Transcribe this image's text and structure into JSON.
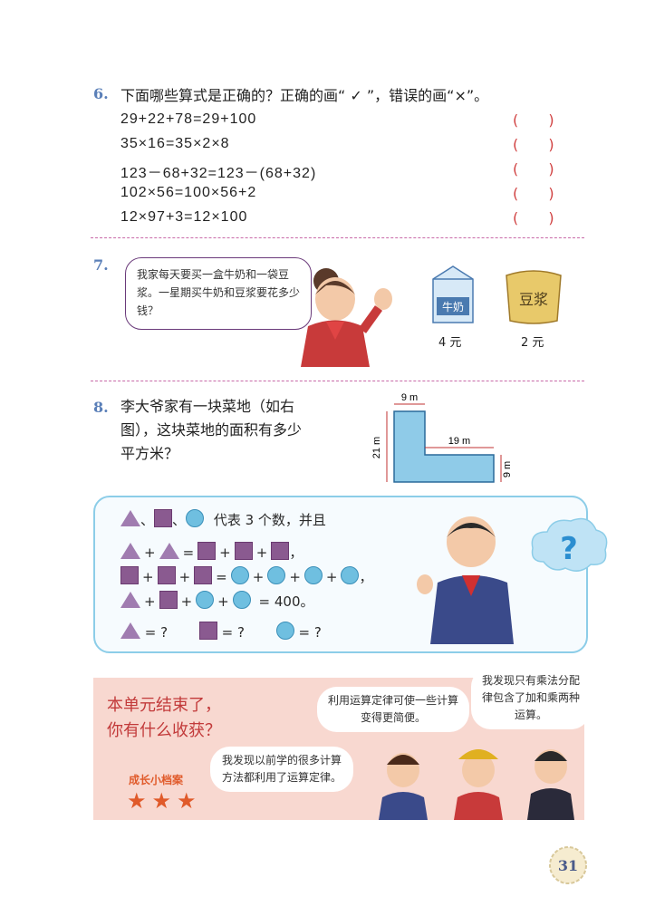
{
  "q6": {
    "number": "6.",
    "prompt": "下面哪些算式是正确的？正确的画“ ✓ ”，错误的画“×”。",
    "rows": [
      {
        "expr": "29+22+78=29+100",
        "paren": "(  )"
      },
      {
        "expr": "35×16=35×2×8",
        "paren": "(  )"
      },
      {
        "expr": "123－68+32=123－(68+32)",
        "paren": "(  )"
      },
      {
        "expr": "102×56=100×56+2",
        "paren": "(  )"
      },
      {
        "expr": "12×97+3=12×100",
        "paren": "(  )"
      }
    ]
  },
  "q7": {
    "number": "7.",
    "bubble": "我家每天要买一盒牛奶和一袋豆浆。一星期买牛奶和豆浆要花多少钱？",
    "milk_label": "牛奶",
    "milk_price": "4 元",
    "soy_label": "豆浆",
    "soy_price": "2 元"
  },
  "q8": {
    "number": "8.",
    "text": "李大爷家有一块菜地（如右图），这块菜地的面积有多少平方米？",
    "dim_top": "9 m",
    "dim_left": "21 m",
    "dim_inner": "19 m",
    "dim_right": "9 m"
  },
  "puzzle": {
    "intro": "代表 3 个数，并且",
    "sep": "、",
    "line3_end": "= 400。",
    "answer_eq": "= ?",
    "comma": "，",
    "question_mark": "?"
  },
  "summary": {
    "title_line1": "本单元结束了，",
    "title_line2": "你有什么收获？",
    "badge": "成长小档案",
    "stars": "★★★",
    "bubble1": "利用运算定律可使一些计算变得更简便。",
    "bubble2": "我发现只有乘法分配律包含了加和乘两种运算。",
    "bubble3": "我发现以前学的很多计算方法都利用了运算定律。"
  },
  "page_number": "31",
  "colors": {
    "accent": "#5a7fb8",
    "divider": "#c86aa8",
    "paren": "#d04040",
    "summary_bg": "#f8d8d0"
  }
}
